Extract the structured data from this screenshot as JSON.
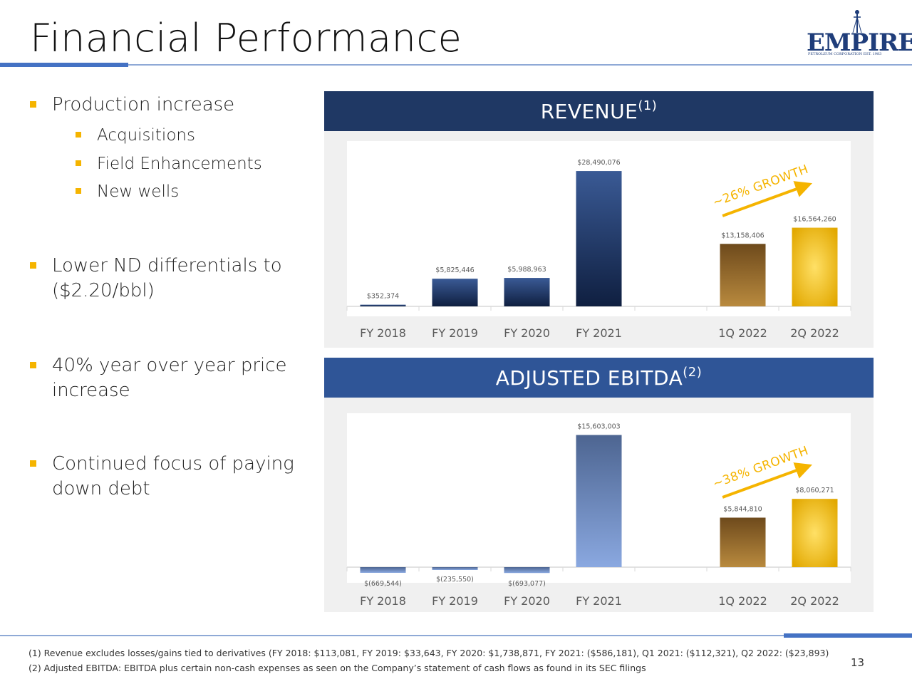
{
  "page": {
    "title": "Financial Performance",
    "page_number": "13"
  },
  "logo": {
    "text": "EMPIRE",
    "subtext": "PETROLEUM CORPORATION EST. 1983"
  },
  "bullets": [
    {
      "text": "Production increase",
      "subitems": [
        "Acquisitions",
        "Field Enhancements",
        "New wells"
      ]
    },
    {
      "text": "Lower ND differentials to ($2.20/bbl)",
      "lines": [
        "Lower ND differentials to",
        "($2.20/bbl)"
      ]
    },
    {
      "text": "40% year over year price increase",
      "lines": [
        "40% year over year price",
        "increase"
      ]
    },
    {
      "text": "Continued focus of paying down debt",
      "lines": [
        "Continued focus of paying",
        "down debt"
      ]
    }
  ],
  "revenue_panel": {
    "title": "REVENUE",
    "footnote_ref": "(1)",
    "growth_label": "~26% GROWTH"
  },
  "ebitda_panel": {
    "title": "ADJUSTED EBITDA",
    "footnote_ref": "(2)",
    "growth_label": "~38% GROWTH"
  },
  "chart_data": [
    {
      "type": "bar",
      "title": "REVENUE (1)",
      "categories": [
        "FY 2018",
        "FY 2019",
        "FY 2020",
        "FY 2021",
        "",
        "1Q 2022",
        "2Q 2022"
      ],
      "values": [
        352374,
        5825446,
        5988963,
        28490076,
        null,
        13158406,
        16564260
      ],
      "labels": [
        "$352,374",
        "$5,825,446",
        "$5,988,963",
        "$28,490,076",
        "",
        "$13,158,406",
        "$16,564,260"
      ],
      "ylim": [
        0,
        30000000
      ],
      "colors": {
        "annual": [
          "#3a5a95",
          "#0f1f40"
        ],
        "quarter_1": [
          "#6e4a1c",
          "#b98a3e"
        ],
        "quarter_2": [
          "#ffe066",
          "#e2a800"
        ]
      },
      "annotation": "~26% GROWTH",
      "grid": false
    },
    {
      "type": "bar",
      "title": "ADJUSTED EBITDA (2)",
      "categories": [
        "FY 2018",
        "FY 2019",
        "FY 2020",
        "FY 2021",
        "",
        "1Q 2022",
        "2Q 2022"
      ],
      "values": [
        -669544,
        -235550,
        -693077,
        15603003,
        null,
        5844810,
        8060271
      ],
      "labels": [
        "$(669,544)",
        "$(235,550)",
        "$(693,077)",
        "$15,603,003",
        "",
        "$5,844,810",
        "$8,060,271"
      ],
      "ylim": [
        -1500000,
        16500000
      ],
      "colors": {
        "annual": [
          "#4d6591",
          "#8aa8e0"
        ],
        "quarter_1": [
          "#6e4a1c",
          "#b98a3e"
        ],
        "quarter_2": [
          "#ffe066",
          "#e2a800"
        ]
      },
      "annotation": "~38% GROWTH",
      "grid": false
    }
  ],
  "colors": {
    "accent_blue": "#4472c4",
    "revenue_header": "#1f3864",
    "ebitda_header": "#2f5597",
    "bullet_yellow": "#f5b400",
    "growth_orange": "#f5b400"
  },
  "footnotes": [
    "(1) Revenue excludes losses/gains tied to derivatives (FY 2018: $113,081, FY 2019: $33,643, FY 2020: $1,738,871, FY 2021: ($586,181), Q1 2021: ($112,321), Q2 2022: ($23,893)",
    "(2) Adjusted EBITDA: EBITDA plus certain non-cash expenses as seen on the Company’s statement of cash flows as found in its SEC filings"
  ]
}
